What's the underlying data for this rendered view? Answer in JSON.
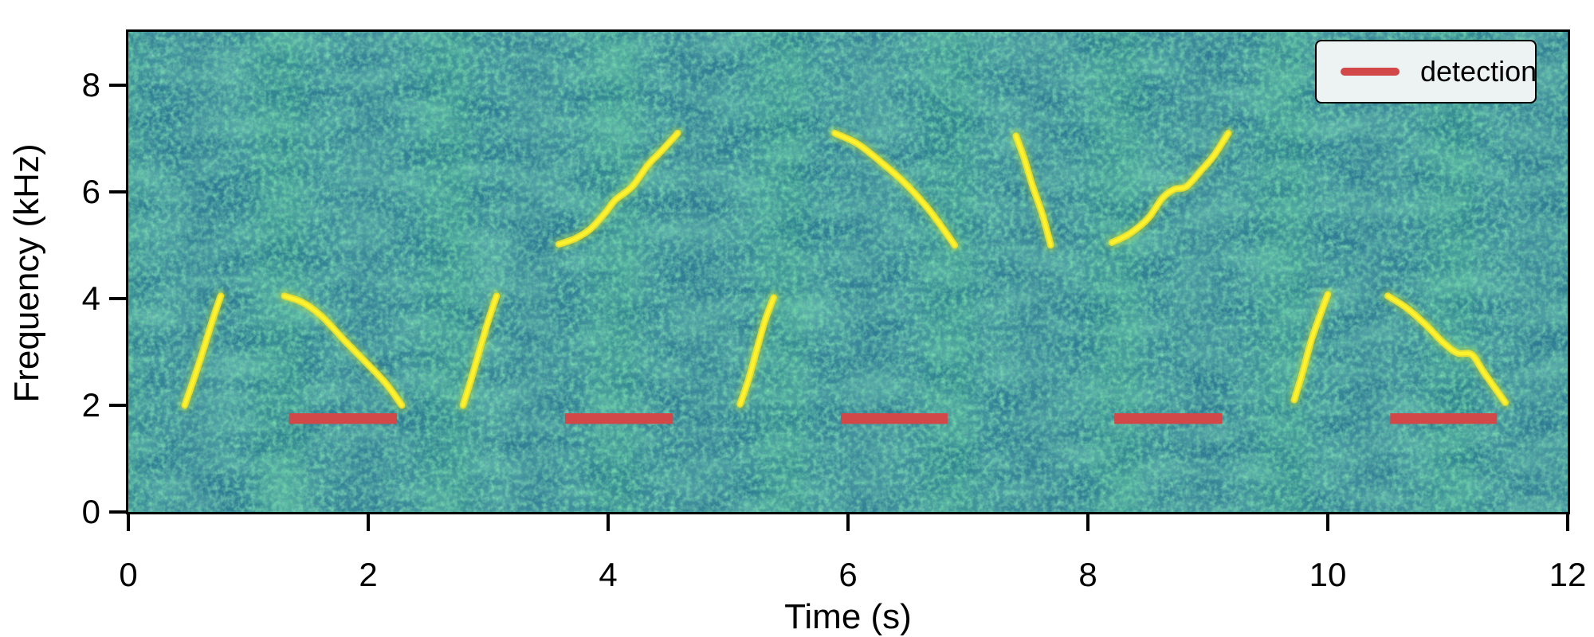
{
  "chart_data": {
    "type": "heatmap",
    "subtype": "spectrogram-with-annotations",
    "title": "",
    "xlabel": "Time (s)",
    "ylabel": "Frequency (kHz)",
    "xlim": [
      0,
      12
    ],
    "ylim": [
      0,
      9
    ],
    "x_ticks": [
      0,
      2,
      4,
      6,
      8,
      10,
      12
    ],
    "y_ticks": [
      0,
      2,
      4,
      6,
      8
    ],
    "grid": false,
    "legend": {
      "position": "upper right",
      "entries": [
        {
          "label": "detection",
          "color": "#d24848"
        }
      ]
    },
    "background": "noisy viridis-style teal spectrogram with faint vertical banding",
    "whistle_contours": [
      {
        "points": [
          [
            0.47,
            2.0
          ],
          [
            0.55,
            2.52
          ],
          [
            0.62,
            3.0
          ],
          [
            0.7,
            3.58
          ],
          [
            0.77,
            4.05
          ]
        ]
      },
      {
        "points": [
          [
            1.3,
            4.05
          ],
          [
            1.46,
            3.92
          ],
          [
            1.62,
            3.65
          ],
          [
            1.8,
            3.22
          ],
          [
            2.0,
            2.76
          ],
          [
            2.15,
            2.4
          ],
          [
            2.28,
            2.0
          ]
        ]
      },
      {
        "points": [
          [
            2.79,
            2.0
          ],
          [
            2.86,
            2.5
          ],
          [
            2.93,
            3.05
          ],
          [
            3.0,
            3.58
          ],
          [
            3.07,
            4.05
          ]
        ]
      },
      {
        "points": [
          [
            3.59,
            5.02
          ],
          [
            3.72,
            5.12
          ],
          [
            3.85,
            5.3
          ],
          [
            3.98,
            5.62
          ],
          [
            4.06,
            5.85
          ],
          [
            4.2,
            6.1
          ],
          [
            4.33,
            6.5
          ],
          [
            4.45,
            6.78
          ],
          [
            4.58,
            7.1
          ]
        ]
      },
      {
        "points": [
          [
            5.1,
            2.02
          ],
          [
            5.17,
            2.48
          ],
          [
            5.24,
            3.05
          ],
          [
            5.31,
            3.6
          ],
          [
            5.38,
            4.02
          ]
        ]
      },
      {
        "points": [
          [
            5.89,
            7.1
          ],
          [
            6.08,
            6.9
          ],
          [
            6.28,
            6.55
          ],
          [
            6.48,
            6.15
          ],
          [
            6.68,
            5.65
          ],
          [
            6.89,
            5.0
          ]
        ]
      },
      {
        "points": [
          [
            7.4,
            7.05
          ],
          [
            7.47,
            6.62
          ],
          [
            7.54,
            6.1
          ],
          [
            7.62,
            5.58
          ],
          [
            7.69,
            5.0
          ]
        ]
      },
      {
        "points": [
          [
            8.2,
            5.05
          ],
          [
            8.35,
            5.22
          ],
          [
            8.5,
            5.5
          ],
          [
            8.62,
            5.88
          ],
          [
            8.72,
            6.05
          ],
          [
            8.82,
            6.1
          ],
          [
            8.95,
            6.42
          ],
          [
            9.05,
            6.68
          ],
          [
            9.17,
            7.1
          ]
        ]
      },
      {
        "points": [
          [
            9.72,
            2.1
          ],
          [
            9.79,
            2.62
          ],
          [
            9.86,
            3.2
          ],
          [
            9.94,
            3.72
          ],
          [
            10.0,
            4.08
          ]
        ]
      },
      {
        "points": [
          [
            10.5,
            4.05
          ],
          [
            10.66,
            3.82
          ],
          [
            10.82,
            3.5
          ],
          [
            10.96,
            3.18
          ],
          [
            11.08,
            2.98
          ],
          [
            11.2,
            2.95
          ],
          [
            11.3,
            2.62
          ],
          [
            11.48,
            2.05
          ]
        ]
      }
    ],
    "detections": [
      {
        "start_s": 1.34,
        "end_s": 2.24
      },
      {
        "start_s": 3.64,
        "end_s": 4.54
      },
      {
        "start_s": 5.94,
        "end_s": 6.83
      },
      {
        "start_s": 8.22,
        "end_s": 9.12
      },
      {
        "start_s": 10.52,
        "end_s": 11.41
      }
    ],
    "detection_marker": {
      "freq_khz": 1.75,
      "thickness_khz": 0.2
    },
    "colors": {
      "noise_base": "#2e7f93",
      "noise_green": "#36ba73",
      "noise_dark_speckle": "#2b408c",
      "whistle_core": "#fdf22e",
      "whistle_mid": "#ecdf2f",
      "whistle_glow": "#bada32",
      "detection": "#d24848",
      "legend_background": "#edf2f3",
      "axis": "#000000"
    }
  }
}
